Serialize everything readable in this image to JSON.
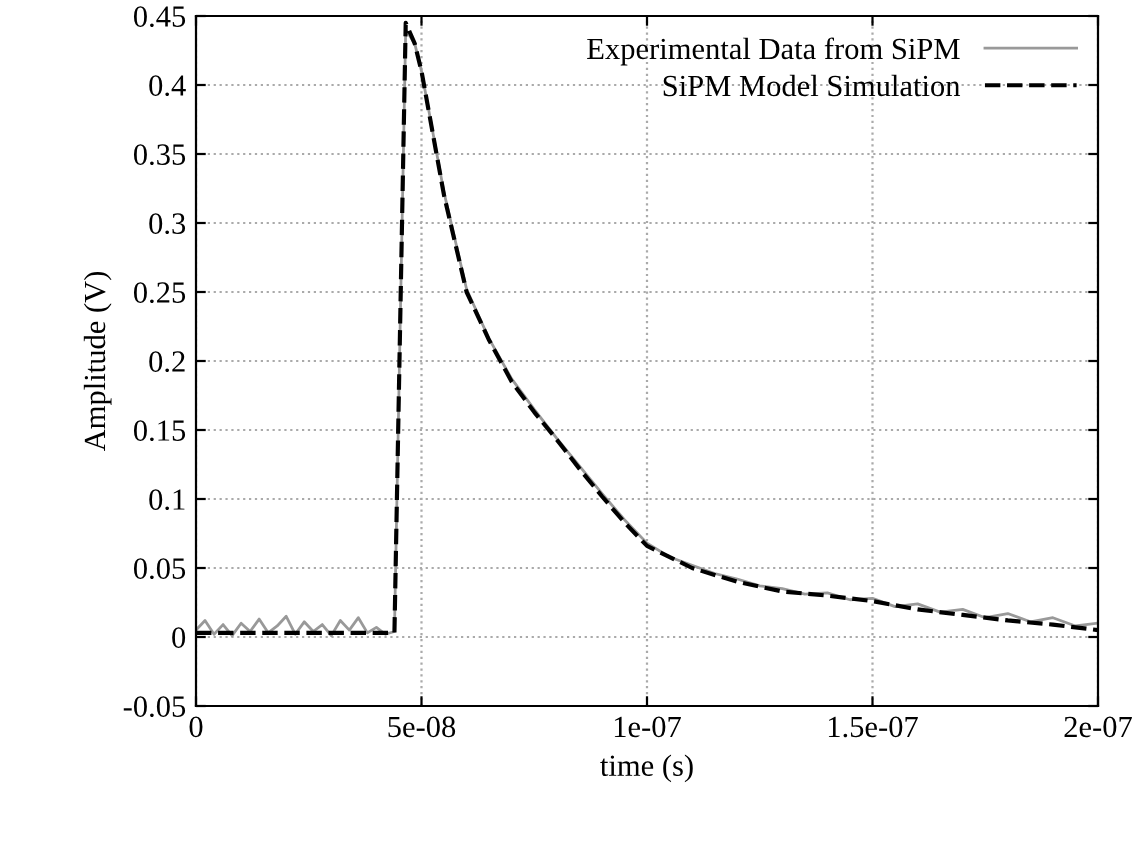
{
  "chart_data": {
    "type": "line",
    "xlabel": "time (s)",
    "ylabel": "Amplitude (V)",
    "xlim": [
      0,
      2e-07
    ],
    "xticks": [
      {
        "value": 0,
        "label": "0"
      },
      {
        "value": 5e-08,
        "label": "5e-08"
      },
      {
        "value": 1e-07,
        "label": "1e-07"
      },
      {
        "value": 1.5e-07,
        "label": "1.5e-07"
      },
      {
        "value": 2e-07,
        "label": "2e-07"
      }
    ],
    "ylim": [
      -0.05,
      0.45
    ],
    "yticks": [
      {
        "value": -0.05,
        "label": "-0.05"
      },
      0,
      0.05,
      0.1,
      0.15,
      0.2,
      0.25,
      0.3,
      0.35,
      0.4,
      0.45
    ],
    "grid": true,
    "legend": "top right",
    "series": [
      {
        "name": "Experimental Data from SiPM",
        "color": "#999999",
        "line_style": "solid",
        "x": [
          0,
          2e-09,
          4e-09,
          6e-09,
          8e-09,
          1e-08,
          1.2e-08,
          1.4e-08,
          1.6e-08,
          1.8e-08,
          2e-08,
          2.2e-08,
          2.4e-08,
          2.6e-08,
          2.8e-08,
          3e-08,
          3.2e-08,
          3.4e-08,
          3.6e-08,
          3.8e-08,
          4e-08,
          4.2e-08,
          4.4e-08,
          4.65e-08,
          4.85e-08,
          5e-08,
          5.5e-08,
          6e-08,
          6.5e-08,
          7e-08,
          7.5e-08,
          8e-08,
          8.5e-08,
          9e-08,
          9.5e-08,
          1e-07,
          1.05e-07,
          1.1e-07,
          1.15e-07,
          1.2e-07,
          1.25e-07,
          1.3e-07,
          1.35e-07,
          1.4e-07,
          1.45e-07,
          1.5e-07,
          1.55e-07,
          1.6e-07,
          1.65e-07,
          1.7e-07,
          1.75e-07,
          1.8e-07,
          1.85e-07,
          1.9e-07,
          1.95e-07,
          2e-07
        ],
        "values": [
          0.005,
          0.012,
          0.002,
          0.009,
          0.001,
          0.01,
          0.004,
          0.013,
          0.003,
          0.008,
          0.015,
          0.002,
          0.011,
          0.004,
          0.009,
          0.001,
          0.012,
          0.005,
          0.014,
          0.003,
          0.007,
          0.002,
          0.004,
          0.44,
          0.43,
          0.41,
          0.322,
          0.252,
          0.216,
          0.187,
          0.165,
          0.144,
          0.124,
          0.104,
          0.085,
          0.068,
          0.058,
          0.052,
          0.046,
          0.042,
          0.037,
          0.035,
          0.031,
          0.032,
          0.027,
          0.028,
          0.022,
          0.024,
          0.018,
          0.02,
          0.014,
          0.017,
          0.011,
          0.014,
          0.008,
          0.01
        ]
      },
      {
        "name": "SiPM Model Simulation",
        "color": "#000000",
        "line_style": "dashed",
        "x": [
          0,
          4.4e-08,
          4.65e-08,
          4.85e-08,
          5e-08,
          5.5e-08,
          6e-08,
          6.5e-08,
          7e-08,
          7.5e-08,
          8e-08,
          8.5e-08,
          9e-08,
          9.5e-08,
          1e-07,
          1.1e-07,
          1.2e-07,
          1.3e-07,
          1.4e-07,
          1.5e-07,
          1.6e-07,
          1.7e-07,
          1.8e-07,
          1.9e-07,
          2e-07
        ],
        "values": [
          0.003,
          0.003,
          0.445,
          0.43,
          0.41,
          0.32,
          0.25,
          0.215,
          0.185,
          0.163,
          0.143,
          0.122,
          0.102,
          0.083,
          0.066,
          0.05,
          0.04,
          0.033,
          0.03,
          0.026,
          0.02,
          0.016,
          0.012,
          0.009,
          0.005
        ]
      }
    ]
  }
}
